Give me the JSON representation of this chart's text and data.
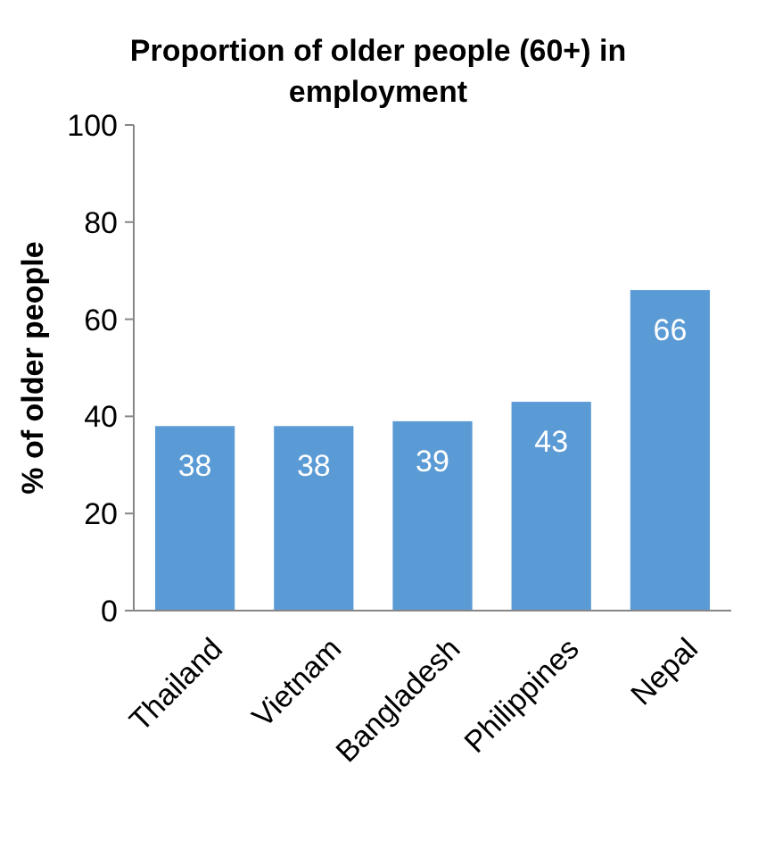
{
  "chart_data": {
    "type": "bar",
    "title": "Proportion of older people (60+) in employment",
    "ylabel": "% of older people",
    "categories": [
      "Thailand",
      "Vietnam",
      "Bangladesh",
      "Philippines",
      "Nepal"
    ],
    "values": [
      38,
      38,
      39,
      43,
      66
    ],
    "color": "#5b9bd5",
    "ylim": [
      0,
      100
    ],
    "yticks": [
      0,
      20,
      40,
      60,
      80,
      100
    ],
    "grid": false,
    "data_labels": true
  }
}
